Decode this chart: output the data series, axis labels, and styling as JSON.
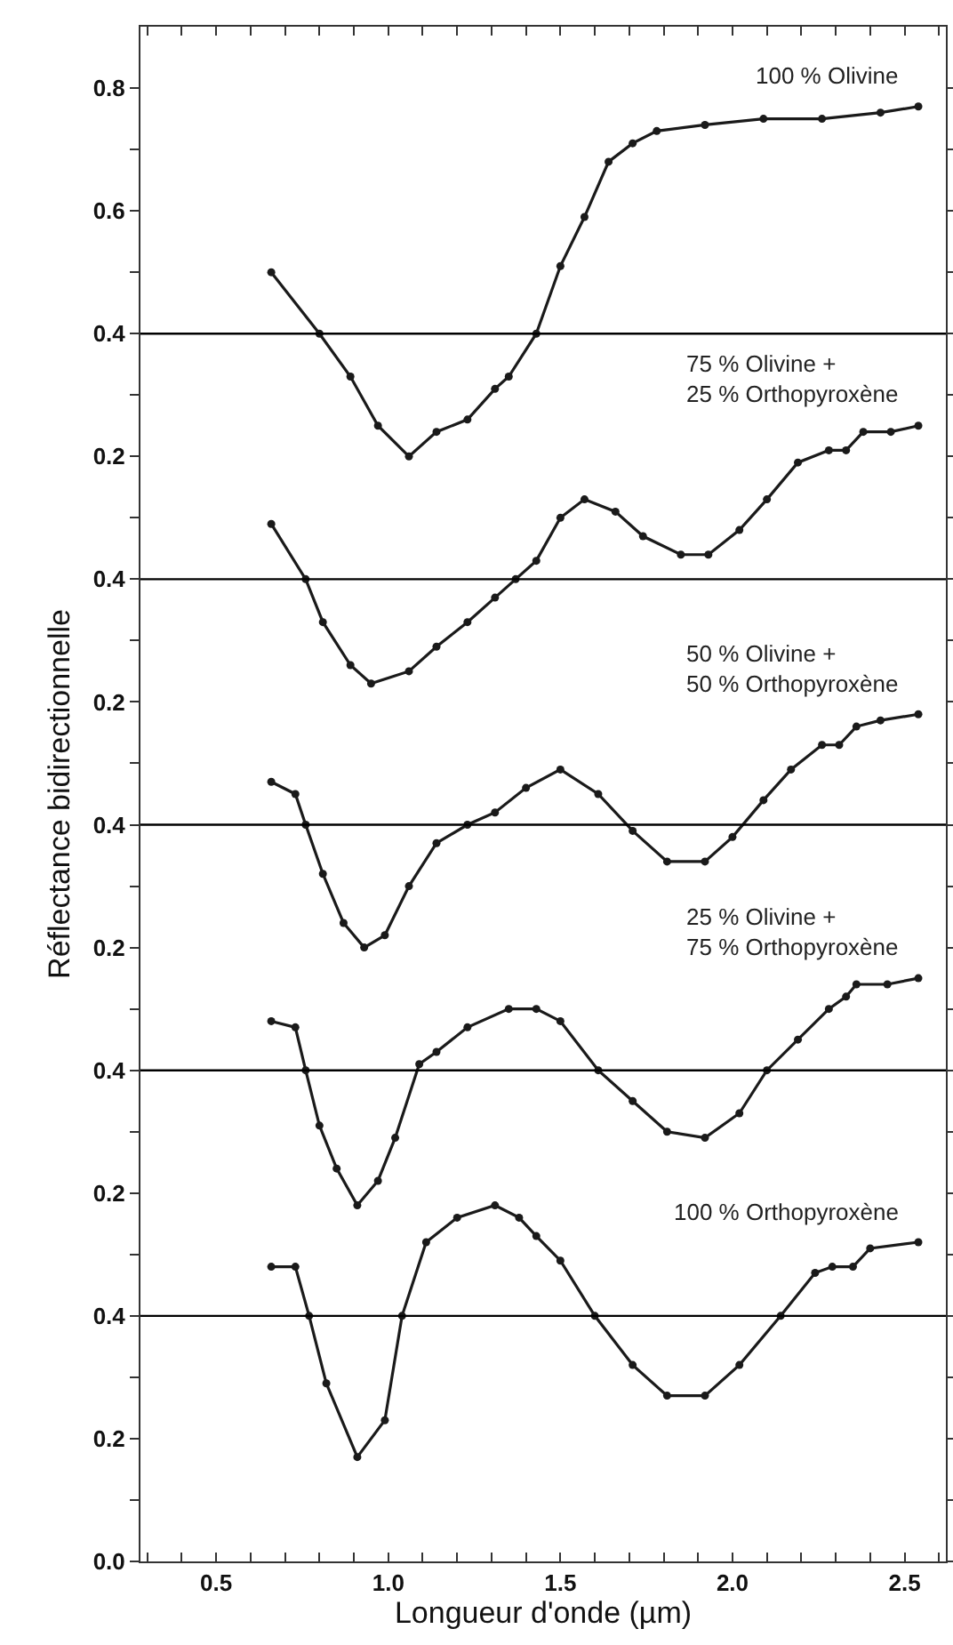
{
  "chart_data": [
    {
      "type": "line",
      "xlim": [
        0.28,
        2.62
      ],
      "ylim": [
        -1.6,
        0.9
      ],
      "yticks": [
        0.8,
        {
          "value": 0.7,
          "label": null
        },
        0.6,
        {
          "value": 0.5,
          "label": null
        },
        0.4,
        {
          "value": 0.3,
          "label": null
        },
        0.2
      ],
      "tick_labels": "y",
      "grid": false,
      "legend": false,
      "marker": "circle",
      "line_style": "solid",
      "ref_lines": [
        {
          "axis": "y",
          "value": 0.4,
          "color": "#000000"
        }
      ],
      "series": [
        {
          "name": "100 % Olivine",
          "color": "#1a1a1a",
          "x": [
            0.66,
            0.8,
            0.89,
            0.97,
            1.06,
            1.14,
            1.23,
            1.31,
            1.35,
            1.43,
            1.5,
            1.57,
            1.64,
            1.71,
            1.78,
            1.92,
            2.09,
            2.26,
            2.43,
            2.54
          ],
          "values": [
            0.5,
            0.4,
            0.33,
            0.25,
            0.2,
            0.24,
            0.26,
            0.31,
            0.33,
            0.4,
            0.51,
            0.59,
            0.68,
            0.71,
            0.73,
            0.74,
            0.75,
            0.75,
            0.76,
            0.77
          ]
        }
      ]
    },
    {
      "type": "line",
      "xlim": [
        0.28,
        2.62
      ],
      "ylim": [
        -1.2,
        1.3
      ],
      "yticks": [
        {
          "value": 0.5,
          "label": null
        },
        0.4,
        {
          "value": 0.3,
          "label": null
        },
        0.2
      ],
      "tick_labels": "y",
      "grid": false,
      "legend": false,
      "marker": "circle",
      "line_style": "solid",
      "ref_lines": [
        {
          "axis": "y",
          "value": 0.4,
          "color": "#000000"
        }
      ],
      "series": [
        {
          "name": "75 % Olivine +\n25 % Orthopyroxène",
          "color": "#1a1a1a",
          "x": [
            0.66,
            0.76,
            0.81,
            0.89,
            0.95,
            1.06,
            1.14,
            1.23,
            1.31,
            1.37,
            1.43,
            1.5,
            1.57,
            1.66,
            1.74,
            1.85,
            1.93,
            2.02,
            2.1,
            2.19,
            2.28,
            2.33,
            2.38,
            2.46,
            2.54
          ],
          "values": [
            0.49,
            0.4,
            0.33,
            0.26,
            0.23,
            0.25,
            0.29,
            0.33,
            0.37,
            0.4,
            0.43,
            0.5,
            0.53,
            0.51,
            0.47,
            0.44,
            0.44,
            0.48,
            0.53,
            0.59,
            0.61,
            0.61,
            0.64,
            0.64,
            0.65
          ]
        }
      ]
    },
    {
      "type": "line",
      "ylabel": "Réflectance bidirectionnelle",
      "xlim": [
        0.28,
        2.62
      ],
      "ylim": [
        -0.8,
        1.7
      ],
      "yticks": [
        {
          "value": 0.5,
          "label": null
        },
        0.4,
        {
          "value": 0.3,
          "label": null
        },
        0.2
      ],
      "tick_labels": "y",
      "grid": false,
      "legend": false,
      "marker": "circle",
      "line_style": "solid",
      "ref_lines": [
        {
          "axis": "y",
          "value": 0.4,
          "color": "#000000"
        }
      ],
      "series": [
        {
          "name": "50 % Olivine +\n50 % Orthopyroxène",
          "color": "#1a1a1a",
          "x": [
            0.66,
            0.73,
            0.76,
            0.81,
            0.87,
            0.93,
            0.99,
            1.06,
            1.14,
            1.23,
            1.31,
            1.4,
            1.5,
            1.61,
            1.71,
            1.81,
            1.92,
            2.0,
            2.09,
            2.17,
            2.26,
            2.31,
            2.36,
            2.43,
            2.54
          ],
          "values": [
            0.47,
            0.45,
            0.4,
            0.32,
            0.24,
            0.2,
            0.22,
            0.3,
            0.37,
            0.4,
            0.42,
            0.46,
            0.49,
            0.45,
            0.39,
            0.34,
            0.34,
            0.38,
            0.44,
            0.49,
            0.53,
            0.53,
            0.56,
            0.57,
            0.58
          ]
        }
      ]
    },
    {
      "type": "line",
      "xlim": [
        0.28,
        2.62
      ],
      "ylim": [
        -0.4,
        2.1
      ],
      "yticks": [
        {
          "value": 0.5,
          "label": null
        },
        0.4,
        {
          "value": 0.3,
          "label": null
        },
        0.2
      ],
      "tick_labels": "y",
      "grid": false,
      "legend": false,
      "marker": "circle",
      "line_style": "solid",
      "ref_lines": [
        {
          "axis": "y",
          "value": 0.4,
          "color": "#000000"
        }
      ],
      "series": [
        {
          "name": "25 % Olivine +\n75 % Orthopyroxène",
          "color": "#1a1a1a",
          "x": [
            0.66,
            0.73,
            0.76,
            0.8,
            0.85,
            0.91,
            0.97,
            1.02,
            1.09,
            1.14,
            1.23,
            1.35,
            1.43,
            1.5,
            1.61,
            1.71,
            1.81,
            1.92,
            2.02,
            2.1,
            2.19,
            2.28,
            2.33,
            2.36,
            2.45,
            2.54
          ],
          "values": [
            0.48,
            0.47,
            0.4,
            0.31,
            0.24,
            0.18,
            0.22,
            0.29,
            0.41,
            0.43,
            0.47,
            0.5,
            0.5,
            0.48,
            0.4,
            0.35,
            0.3,
            0.29,
            0.33,
            0.4,
            0.45,
            0.5,
            0.52,
            0.54,
            0.54,
            0.55
          ]
        }
      ]
    },
    {
      "type": "line",
      "xlabel": "Longueur d'onde (µm)",
      "xlim": [
        0.28,
        2.62
      ],
      "xticks": [
        {
          "value": 0.3,
          "label": null
        },
        {
          "value": 0.4,
          "label": null
        },
        0.5,
        {
          "value": 0.6,
          "label": null
        },
        {
          "value": 0.7,
          "label": null
        },
        {
          "value": 0.8,
          "label": null
        },
        {
          "value": 0.9,
          "label": null
        },
        {
          "value": 1,
          "label": "1.0"
        },
        {
          "value": 1.1,
          "label": null
        },
        {
          "value": 1.2,
          "label": null
        },
        {
          "value": 1.3,
          "label": null
        },
        {
          "value": 1.4,
          "label": null
        },
        1.5,
        {
          "value": 1.6,
          "label": null
        },
        {
          "value": 1.7,
          "label": null
        },
        {
          "value": 1.8,
          "label": null
        },
        {
          "value": 1.9,
          "label": null
        },
        {
          "value": 2,
          "label": "2.0"
        },
        {
          "value": 2.1,
          "label": null
        },
        {
          "value": 2.2,
          "label": null
        },
        {
          "value": 2.3,
          "label": null
        },
        {
          "value": 2.4,
          "label": null
        },
        2.5,
        {
          "value": 2.6,
          "label": null
        }
      ],
      "ylim": [
        0,
        2.5
      ],
      "yticks": [
        {
          "value": 0.5,
          "label": null
        },
        0.4,
        {
          "value": 0.3,
          "label": null
        },
        0.2,
        {
          "value": 0.1,
          "label": null
        },
        {
          "value": 0,
          "label": "0.0"
        }
      ],
      "grid": false,
      "legend": false,
      "marker": "circle",
      "line_style": "solid",
      "ref_lines": [
        {
          "axis": "y",
          "value": 0.4,
          "color": "#000000"
        }
      ],
      "series": [
        {
          "name": "100 % Orthopyroxène",
          "color": "#1a1a1a",
          "x": [
            0.66,
            0.73,
            0.77,
            0.82,
            0.91,
            0.99,
            1.04,
            1.11,
            1.2,
            1.31,
            1.38,
            1.43,
            1.5,
            1.6,
            1.71,
            1.81,
            1.92,
            2.02,
            2.14,
            2.24,
            2.29,
            2.35,
            2.4,
            2.54
          ],
          "values": [
            0.48,
            0.48,
            0.4,
            0.29,
            0.17,
            0.23,
            0.4,
            0.52,
            0.56,
            0.58,
            0.56,
            0.53,
            0.49,
            0.4,
            0.32,
            0.27,
            0.27,
            0.32,
            0.4,
            0.47,
            0.48,
            0.48,
            0.51,
            0.52
          ]
        }
      ]
    }
  ]
}
